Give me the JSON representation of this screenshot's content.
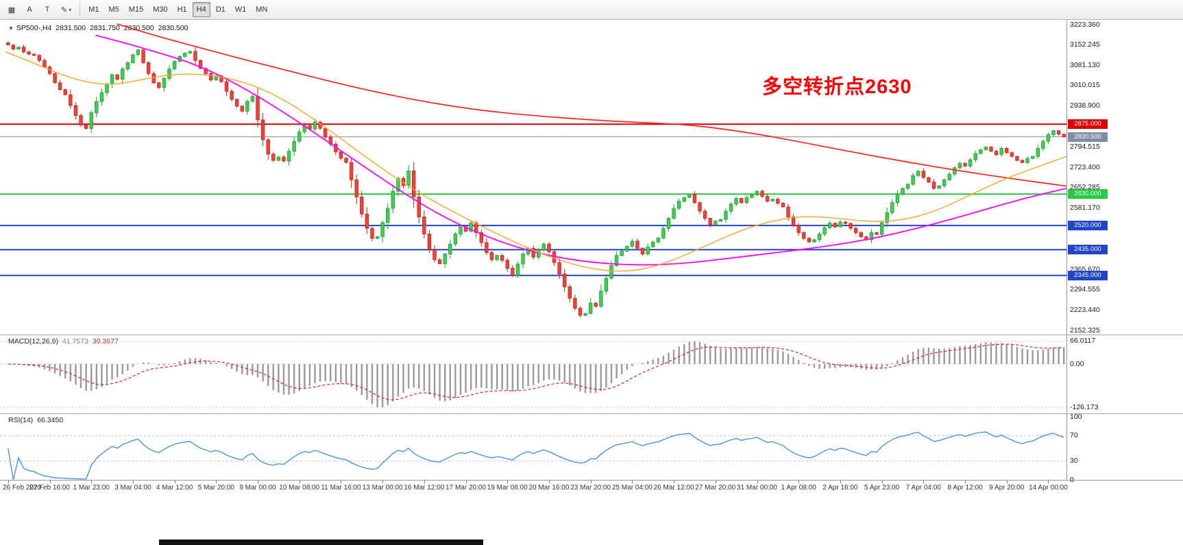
{
  "toolbar": {
    "tools": [
      {
        "name": "chart-window-icon",
        "glyph": "▦"
      },
      {
        "name": "cursor-tool-icon",
        "glyph": "A"
      },
      {
        "name": "text-tool-icon",
        "glyph": "T"
      },
      {
        "name": "draw-tools-icon",
        "glyph": "✎",
        "caret": "▾"
      }
    ],
    "timeframes": [
      "M1",
      "M5",
      "M15",
      "M30",
      "H1",
      "H4",
      "D1",
      "W1",
      "MN"
    ],
    "active_timeframe": "H4"
  },
  "chart": {
    "expand_icon": "▼",
    "symbol_line": "SP500-,H4",
    "ohlc": [
      "2831.500",
      "2831.750",
      "2830.500",
      "2830.500"
    ],
    "annotation": {
      "text": "多空转折点2630",
      "color": "#ff0000"
    },
    "levels": [
      {
        "price": 2875.0,
        "label": "2875.000",
        "color": "#e00000",
        "width": 2,
        "name": "resistance-line-2875"
      },
      {
        "price": 2830.5,
        "label": "2830.500",
        "color": "#7f8fa3",
        "width": 1,
        "name": "current-price-line"
      },
      {
        "price": 2630.0,
        "label": "2630.000",
        "color": "#22cc44",
        "width": 2,
        "name": "support-line-2630"
      },
      {
        "price": 2520.0,
        "label": "2520.000",
        "color": "#2244cc",
        "width": 2,
        "name": "support-line-2520"
      },
      {
        "price": 2435.0,
        "label": "2435.000",
        "color": "#2244cc",
        "width": 2,
        "name": "support-line-2435"
      },
      {
        "price": 2345.0,
        "label": "2345.000",
        "color": "#2244cc",
        "width": 2,
        "name": "support-line-2345"
      }
    ],
    "y_axis": [
      {
        "label": "3223.360",
        "value": 3223.36
      },
      {
        "label": "3152.245",
        "value": 3152.245
      },
      {
        "label": "3081.130",
        "value": 3081.13
      },
      {
        "label": "3010.015",
        "value": 3010.015
      },
      {
        "label": "2938.900",
        "value": 2938.9
      },
      {
        "label": "2794.515",
        "value": 2794.515
      },
      {
        "label": "2723.400",
        "value": 2723.4
      },
      {
        "label": "2652.285",
        "value": 2652.285
      },
      {
        "label": "2581.170",
        "value": 2581.17
      },
      {
        "label": "2510.055",
        "value": 2510.055
      },
      {
        "label": "2365.670",
        "value": 2365.67
      },
      {
        "label": "2294.555",
        "value": 2294.555
      },
      {
        "label": "2223.440",
        "value": 2223.44
      },
      {
        "label": "2152.325",
        "value": 2152.325
      }
    ],
    "x_axis": [
      "26 Feb 2020",
      "27 Feb 16:00",
      "1 Mar 23:00",
      "3 Mar 04:00",
      "4 Mar 12:00",
      "5 Mar 20:00",
      "9 Mar 00:00",
      "10 Mar 08:00",
      "11 Mar 16:00",
      "13 Mar 00:00",
      "16 Mar 12:00",
      "17 Mar 20:00",
      "19 Mar 08:00",
      "20 Mar 16:00",
      "23 Mar 20:00",
      "25 Mar 04:00",
      "26 Mar 12:00",
      "27 Mar 20:00",
      "31 Mar 00:00",
      "1 Apr 08:00",
      "2 Apr 16:00",
      "5 Apr 23:00",
      "7 Apr 04:00",
      "8 Apr 12:00",
      "9 Apr 20:00",
      "14 Apr 00:00"
    ]
  },
  "chart_data": {
    "type": "candlestick",
    "symbol": "SP500-",
    "timeframe": "H4",
    "y_range": [
      2152.325,
      3223.36
    ],
    "start_open": 3160,
    "closes": [
      3152,
      3138,
      3145,
      3128,
      3120,
      3116,
      3098,
      3075,
      3052,
      3020,
      2996,
      2978,
      2940,
      2905,
      2872,
      2860,
      2915,
      2954,
      2985,
      3015,
      3048,
      3032,
      3068,
      3090,
      3118,
      3135,
      3090,
      3052,
      3020,
      3003,
      3035,
      3068,
      3095,
      3112,
      3124,
      3130,
      3098,
      3070,
      3052,
      3030,
      3044,
      3024,
      2990,
      2962,
      2938,
      2920,
      2955,
      2972,
      2890,
      2820,
      2770,
      2748,
      2760,
      2746,
      2780,
      2815,
      2848,
      2870,
      2858,
      2882,
      2860,
      2830,
      2805,
      2778,
      2756,
      2741,
      2680,
      2620,
      2560,
      2510,
      2475,
      2481,
      2530,
      2580,
      2640,
      2685,
      2660,
      2711,
      2620,
      2550,
      2490,
      2435,
      2400,
      2386,
      2420,
      2455,
      2490,
      2515,
      2500,
      2529,
      2495,
      2460,
      2425,
      2400,
      2415,
      2398,
      2370,
      2345,
      2385,
      2420,
      2440,
      2409,
      2435,
      2455,
      2428,
      2390,
      2350,
      2305,
      2265,
      2230,
      2205,
      2212,
      2248,
      2237,
      2290,
      2335,
      2380,
      2415,
      2430,
      2447,
      2465,
      2440,
      2420,
      2445,
      2462,
      2476,
      2510,
      2545,
      2580,
      2605,
      2618,
      2630,
      2600,
      2570,
      2545,
      2522,
      2535,
      2541,
      2570,
      2595,
      2615,
      2600,
      2618,
      2627,
      2640,
      2622,
      2605,
      2612,
      2598,
      2585,
      2550,
      2520,
      2495,
      2475,
      2462,
      2470,
      2490,
      2512,
      2528,
      2515,
      2532,
      2527,
      2510,
      2495,
      2480,
      2470,
      2495,
      2489,
      2530,
      2565,
      2600,
      2630,
      2650,
      2664,
      2695,
      2710,
      2688,
      2672,
      2650,
      2659,
      2680,
      2700,
      2722,
      2738,
      2728,
      2750,
      2772,
      2785,
      2795,
      2780,
      2768,
      2790,
      2775,
      2762,
      2748,
      2740,
      2755,
      2762,
      2790,
      2815,
      2838,
      2852,
      2840,
      2830.5
    ],
    "ma_overlays": {
      "red": [
        [
          0.105,
          3226
        ],
        [
          0.14,
          3186
        ],
        [
          0.18,
          3146
        ],
        [
          0.22,
          3106
        ],
        [
          0.26,
          3068
        ],
        [
          0.3,
          3030
        ],
        [
          0.34,
          2995
        ],
        [
          0.38,
          2964
        ],
        [
          0.42,
          2938
        ],
        [
          0.46,
          2918
        ],
        [
          0.5,
          2904
        ],
        [
          0.55,
          2890
        ],
        [
          0.6,
          2880
        ],
        [
          0.645,
          2873
        ],
        [
          0.7,
          2846
        ],
        [
          0.75,
          2812
        ],
        [
          0.8,
          2776
        ],
        [
          0.85,
          2742
        ],
        [
          0.9,
          2711
        ],
        [
          0.95,
          2683
        ],
        [
          1.0,
          2658
        ]
      ],
      "magenta": [
        [
          0.085,
          3186
        ],
        [
          0.11,
          3162
        ],
        [
          0.14,
          3130
        ],
        [
          0.17,
          3096
        ],
        [
          0.2,
          3050
        ],
        [
          0.23,
          2990
        ],
        [
          0.26,
          2922
        ],
        [
          0.29,
          2848
        ],
        [
          0.32,
          2772
        ],
        [
          0.35,
          2696
        ],
        [
          0.38,
          2622
        ],
        [
          0.41,
          2556
        ],
        [
          0.44,
          2502
        ],
        [
          0.47,
          2458
        ],
        [
          0.5,
          2425
        ],
        [
          0.53,
          2402
        ],
        [
          0.56,
          2388
        ],
        [
          0.6,
          2380
        ],
        [
          0.64,
          2387
        ],
        [
          0.68,
          2404
        ],
        [
          0.72,
          2422
        ],
        [
          0.76,
          2440
        ],
        [
          0.8,
          2462
        ],
        [
          0.84,
          2492
        ],
        [
          0.88,
          2530
        ],
        [
          0.92,
          2572
        ],
        [
          0.96,
          2615
        ],
        [
          1.0,
          2650
        ]
      ],
      "orange": [
        [
          0,
          3128
        ],
        [
          0.025,
          3092
        ],
        [
          0.05,
          3052
        ],
        [
          0.075,
          3022
        ],
        [
          0.1,
          3012
        ],
        [
          0.125,
          3028
        ],
        [
          0.15,
          3046
        ],
        [
          0.175,
          3052
        ],
        [
          0.2,
          3044
        ],
        [
          0.225,
          3022
        ],
        [
          0.25,
          2985
        ],
        [
          0.275,
          2932
        ],
        [
          0.3,
          2868
        ],
        [
          0.325,
          2800
        ],
        [
          0.35,
          2732
        ],
        [
          0.375,
          2668
        ],
        [
          0.4,
          2612
        ],
        [
          0.425,
          2562
        ],
        [
          0.45,
          2515
        ],
        [
          0.475,
          2470
        ],
        [
          0.5,
          2428
        ],
        [
          0.525,
          2395
        ],
        [
          0.55,
          2370
        ],
        [
          0.575,
          2358
        ],
        [
          0.6,
          2365
        ],
        [
          0.625,
          2392
        ],
        [
          0.65,
          2432
        ],
        [
          0.675,
          2474
        ],
        [
          0.7,
          2512
        ],
        [
          0.725,
          2538
        ],
        [
          0.75,
          2552
        ],
        [
          0.775,
          2549
        ],
        [
          0.8,
          2538
        ],
        [
          0.825,
          2533
        ],
        [
          0.85,
          2542
        ],
        [
          0.875,
          2568
        ],
        [
          0.9,
          2610
        ],
        [
          0.925,
          2655
        ],
        [
          0.95,
          2695
        ],
        [
          0.975,
          2728
        ],
        [
          1.0,
          2762
        ]
      ]
    }
  },
  "macd": {
    "label": "MACD(12,26,9)",
    "value_main": "41.7573",
    "value_signal": "39.3677",
    "params": {
      "fast": 12,
      "slow": 26,
      "signal": 9
    },
    "axis": [
      {
        "label": "66.0117",
        "value": 66.0117
      },
      {
        "label": "0.00",
        "value": 0
      },
      {
        "label": "-126.173",
        "value": -126.173
      }
    ],
    "range": {
      "max": 66.0117,
      "min": -126.173
    }
  },
  "rsi": {
    "label": "RSI(14)",
    "value": "66.3450",
    "period": 14,
    "levels": [
      70,
      30
    ],
    "axis": [
      {
        "label": "100",
        "value": 100
      },
      {
        "label": "70",
        "value": 70
      },
      {
        "label": "30",
        "value": 30
      },
      {
        "label": "0",
        "value": 0
      }
    ]
  },
  "colors": {
    "up_stroke": "#1d9e33",
    "up_fill": "#43cc52",
    "down_stroke": "#c62017",
    "down_fill": "#e8463c",
    "ma_red": "#ff1f1f",
    "ma_magenta": "#ff00ff",
    "ma_orange": "#ffa426",
    "macd_hist": "#9a9a9a",
    "macd_signal": "#d62020",
    "rsi_line": "#3b8fe0",
    "grid_dotted": "#c4c4c4",
    "axis_text": "#1a1a1a"
  }
}
